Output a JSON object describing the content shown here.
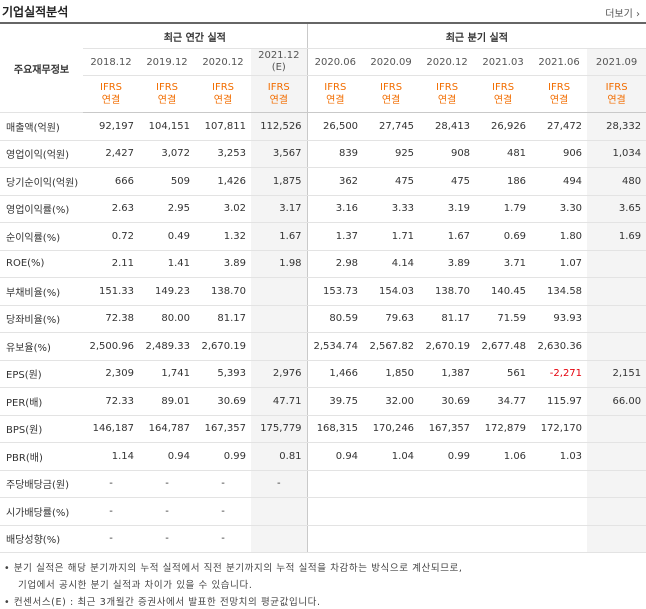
{
  "header": {
    "title": "기업실적분석",
    "more": "더보기"
  },
  "groups": {
    "annual": "최근 연간 실적",
    "quarter": "최근 분기 실적",
    "row_header": "주요재무정보"
  },
  "periods": [
    "2018.12",
    "2019.12",
    "2020.12",
    "2021.12",
    "2020.06",
    "2020.09",
    "2020.12",
    "2021.03",
    "2021.06",
    "2021.09"
  ],
  "estimate_mark": "(E)",
  "basis_top": "IFRS",
  "basis_bottom": "연결",
  "rows": [
    {
      "label": "매출액(억원)",
      "values": [
        "92,197",
        "104,151",
        "107,811",
        "112,526",
        "26,500",
        "27,745",
        "28,413",
        "26,926",
        "27,472",
        "28,332"
      ]
    },
    {
      "label": "영업이익(억원)",
      "values": [
        "2,427",
        "3,072",
        "3,253",
        "3,567",
        "839",
        "925",
        "908",
        "481",
        "906",
        "1,034"
      ]
    },
    {
      "label": "당기순이익(억원)",
      "values": [
        "666",
        "509",
        "1,426",
        "1,875",
        "362",
        "475",
        "475",
        "186",
        "494",
        "480"
      ]
    },
    {
      "label": "영업이익률(%)",
      "values": [
        "2.63",
        "2.95",
        "3.02",
        "3.17",
        "3.16",
        "3.33",
        "3.19",
        "1.79",
        "3.30",
        "3.65"
      ]
    },
    {
      "label": "순이익률(%)",
      "values": [
        "0.72",
        "0.49",
        "1.32",
        "1.67",
        "1.37",
        "1.71",
        "1.67",
        "0.69",
        "1.80",
        "1.69"
      ]
    },
    {
      "label": "ROE(%)",
      "values": [
        "2.11",
        "1.41",
        "3.89",
        "1.98",
        "2.98",
        "4.14",
        "3.89",
        "3.71",
        "1.07",
        ""
      ]
    },
    {
      "label": "부채비율(%)",
      "values": [
        "151.33",
        "149.23",
        "138.70",
        "",
        "153.73",
        "154.03",
        "138.70",
        "140.45",
        "134.58",
        ""
      ]
    },
    {
      "label": "당좌비율(%)",
      "values": [
        "72.38",
        "80.00",
        "81.17",
        "",
        "80.59",
        "79.63",
        "81.17",
        "71.59",
        "93.93",
        ""
      ]
    },
    {
      "label": "유보율(%)",
      "values": [
        "2,500.96",
        "2,489.33",
        "2,670.19",
        "",
        "2,534.74",
        "2,567.82",
        "2,670.19",
        "2,677.48",
        "2,630.36",
        ""
      ]
    },
    {
      "label": "EPS(원)",
      "values": [
        "2,309",
        "1,741",
        "5,393",
        "2,976",
        "1,466",
        "1,850",
        "1,387",
        "561",
        "-2,271",
        "2,151"
      ]
    },
    {
      "label": "PER(배)",
      "values": [
        "72.33",
        "89.01",
        "30.69",
        "47.71",
        "39.75",
        "32.00",
        "30.69",
        "34.77",
        "115.97",
        "66.00"
      ]
    },
    {
      "label": "BPS(원)",
      "values": [
        "146,187",
        "164,787",
        "167,357",
        "175,779",
        "168,315",
        "170,246",
        "167,357",
        "172,879",
        "172,170",
        ""
      ]
    },
    {
      "label": "PBR(배)",
      "values": [
        "1.14",
        "0.94",
        "0.99",
        "0.81",
        "0.94",
        "1.04",
        "0.99",
        "1.06",
        "1.03",
        ""
      ]
    },
    {
      "label": "주당배당금(원)",
      "values": [
        "-",
        "-",
        "-",
        "-",
        "",
        "",
        "",
        "",
        "",
        ""
      ]
    },
    {
      "label": "시가배당률(%)",
      "values": [
        "-",
        "-",
        "-",
        "",
        "",
        "",
        "",
        "",
        "",
        ""
      ]
    },
    {
      "label": "배당성향(%)",
      "values": [
        "-",
        "-",
        "-",
        "",
        "",
        "",
        "",
        "",
        "",
        ""
      ]
    }
  ],
  "footnotes": {
    "line1": "• 분기 실적은 해당 분기까지의 누적 실적에서 직전 분기까지의 누적 실적을 차감하는 방식으로 계산되므로,",
    "line2": "기업에서 공시한 분기 실적과 차이가 있을 수 있습니다.",
    "line3": "• 컨센서스(E) : 최근 3개월간 증권사에서 발표한 전망치의 평균값입니다."
  }
}
